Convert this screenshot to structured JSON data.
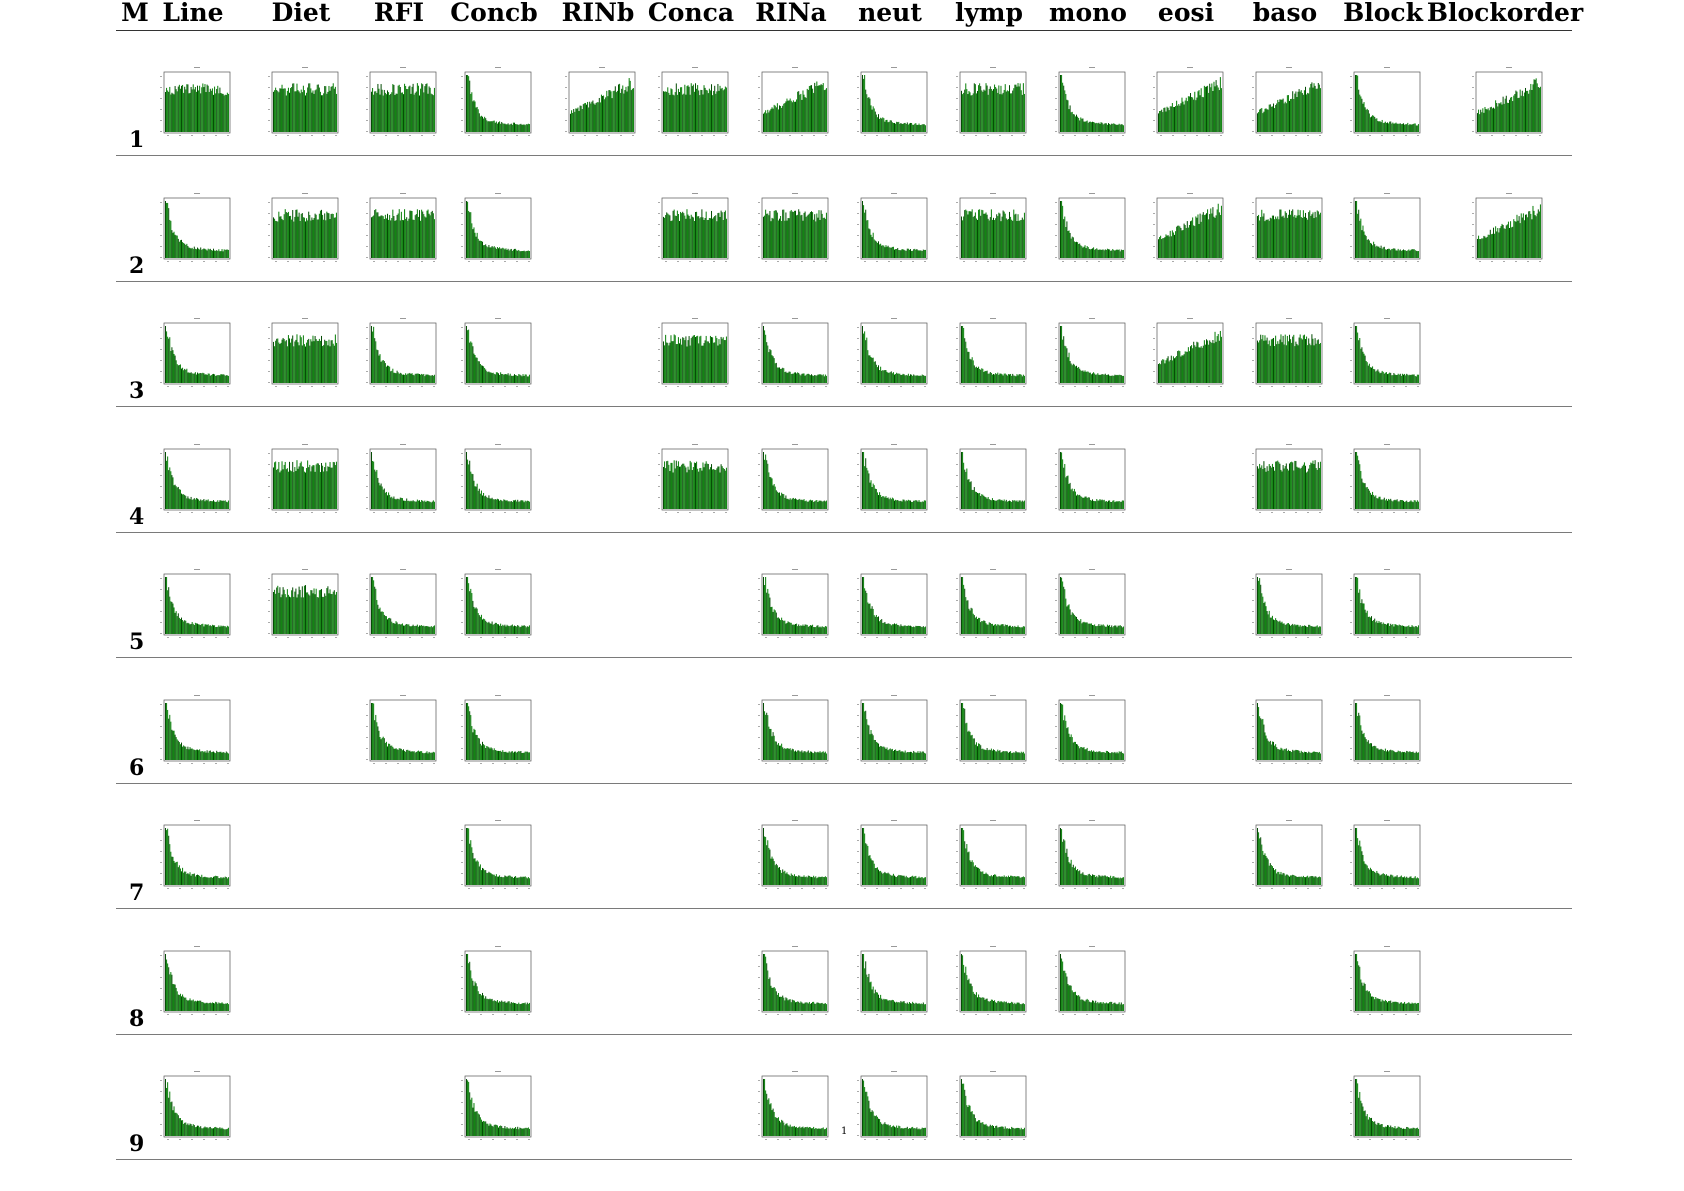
{
  "columns": [
    "M",
    "Line",
    "Diet",
    "RFI",
    "Concb",
    "RINb",
    "Conca",
    "RINa",
    "neut",
    "lymp",
    "mono",
    "eosi",
    "baso",
    "Block",
    "Blockorder"
  ],
  "rows": [
    "1",
    "2",
    "3",
    "4",
    "5",
    "6",
    "7",
    "8",
    "9"
  ],
  "colors": {
    "bar": "#0a7f0a",
    "bar_dark": "#064d06",
    "frame": "#555555",
    "rule": "#7a7a7a"
  },
  "page_number": "1",
  "chart_data": {
    "type": "bar",
    "description_layout": "grid of small histogram thumbnails; rows = M (1-9), columns = variables; present[row] lists which variables have a panel; shape[var] is the qualitative distribution (decay = L-shaped/exponential-decay, flat = roughly uniform, rise = increasing)",
    "present": {
      "1": [
        "Line",
        "Diet",
        "RFI",
        "Concb",
        "RINb",
        "Conca",
        "RINa",
        "neut",
        "lymp",
        "mono",
        "eosi",
        "baso",
        "Block",
        "Blockorder"
      ],
      "2": [
        "Line",
        "Diet",
        "RFI",
        "Concb",
        "Conca",
        "RINa",
        "neut",
        "lymp",
        "mono",
        "eosi",
        "baso",
        "Block",
        "Blockorder"
      ],
      "3": [
        "Line",
        "Diet",
        "RFI",
        "Concb",
        "Conca",
        "RINa",
        "neut",
        "lymp",
        "mono",
        "eosi",
        "baso",
        "Block"
      ],
      "4": [
        "Line",
        "Diet",
        "RFI",
        "Concb",
        "Conca",
        "RINa",
        "neut",
        "lymp",
        "mono",
        "baso",
        "Block"
      ],
      "5": [
        "Line",
        "Diet",
        "RFI",
        "Concb",
        "RINa",
        "neut",
        "lymp",
        "mono",
        "baso",
        "Block"
      ],
      "6": [
        "Line",
        "RFI",
        "Concb",
        "RINa",
        "neut",
        "lymp",
        "mono",
        "baso",
        "Block"
      ],
      "7": [
        "Line",
        "Concb",
        "RINa",
        "neut",
        "lymp",
        "mono",
        "baso",
        "Block"
      ],
      "8": [
        "Line",
        "Concb",
        "RINa",
        "neut",
        "lymp",
        "mono",
        "Block"
      ],
      "9": [
        "Line",
        "Concb",
        "RINa",
        "neut",
        "lymp",
        "Block"
      ]
    },
    "shape": {
      "1": {
        "Line": "flat",
        "Diet": "flat",
        "RFI": "flat",
        "Concb": "decay",
        "RINb": "rise",
        "Conca": "flat",
        "RINa": "rise",
        "neut": "decay",
        "lymp": "flat",
        "mono": "decay",
        "eosi": "rise",
        "baso": "rise",
        "Block": "decay",
        "Blockorder": "rise"
      },
      "2": {
        "Line": "decay",
        "Diet": "flat",
        "RFI": "flat",
        "Concb": "decay",
        "Conca": "flat",
        "RINa": "flat",
        "neut": "decay",
        "lymp": "flat",
        "mono": "decay",
        "eosi": "rise",
        "baso": "flat",
        "Block": "decay",
        "Blockorder": "rise"
      },
      "3": {
        "Line": "decay",
        "Diet": "flat",
        "RFI": "decay",
        "Concb": "decay",
        "Conca": "flat",
        "RINa": "decay",
        "neut": "decay",
        "lymp": "decay",
        "mono": "decay",
        "eosi": "rise",
        "baso": "flat",
        "Block": "decay"
      },
      "4": {
        "Line": "decay",
        "Diet": "flat",
        "RFI": "decay",
        "Concb": "decay",
        "Conca": "flat",
        "RINa": "decay",
        "neut": "decay",
        "lymp": "decay",
        "mono": "decay",
        "baso": "flat",
        "Block": "decay"
      },
      "5": {
        "Line": "decay",
        "Diet": "flat",
        "RFI": "decay",
        "Concb": "decay",
        "RINa": "decay",
        "neut": "decay",
        "lymp": "decay",
        "mono": "decay",
        "baso": "decay",
        "Block": "decay"
      },
      "6": {
        "Line": "decay",
        "RFI": "decay",
        "Concb": "decay",
        "RINa": "decay",
        "neut": "decay",
        "lymp": "decay",
        "mono": "decay",
        "baso": "decay",
        "Block": "decay"
      },
      "7": {
        "Line": "decay",
        "Concb": "decay",
        "RINa": "decay",
        "neut": "decay",
        "lymp": "decay",
        "mono": "decay",
        "baso": "decay",
        "Block": "decay"
      },
      "8": {
        "Line": "decay",
        "Concb": "decay",
        "RINa": "decay",
        "neut": "decay",
        "lymp": "decay",
        "mono": "decay",
        "Block": "decay"
      },
      "9": {
        "Line": "decay",
        "Concb": "decay",
        "RINa": "decay",
        "neut": "decay",
        "lymp": "decay",
        "Block": "decay"
      }
    }
  }
}
